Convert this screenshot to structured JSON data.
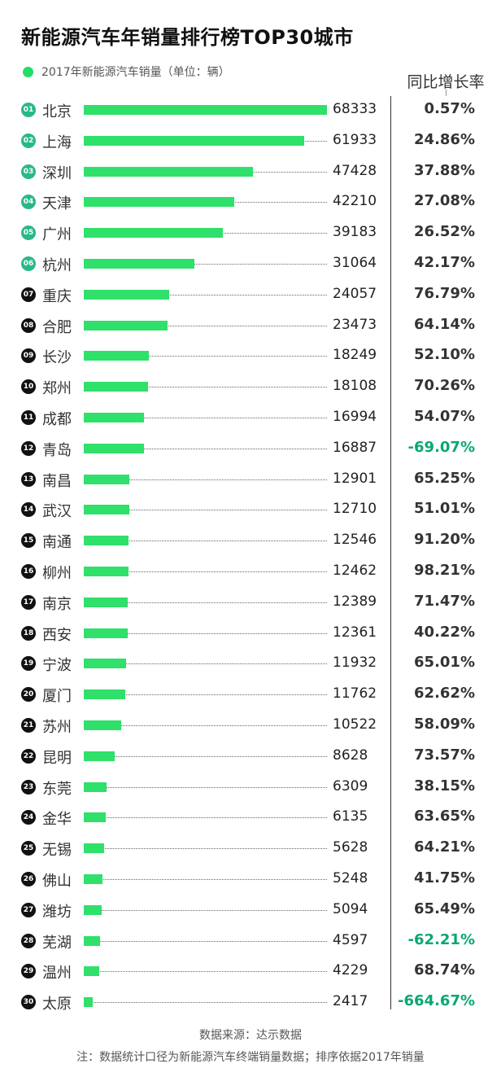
{
  "title": "新能源汽车年销量排行榜TOP30城市",
  "legend": {
    "label": "2017年新能源汽车销量（单位：辆）",
    "color": "#22dd66"
  },
  "growth_header": "同比增长率",
  "source": "数据来源：达示数据",
  "footnote": "注：数据统计口径为新能源汽车终端销量数据；排序依据2017年销量",
  "colors": {
    "bar": "#2fe06a",
    "badge_top": "#2ab88a",
    "badge_rest": "#111111",
    "negative": "#0aa870"
  },
  "chart_data": {
    "type": "bar",
    "orientation": "horizontal",
    "series_name": "2017年新能源汽车销量（单位：辆）",
    "rows": [
      {
        "rank": "01",
        "city": "北京",
        "sales": 68333,
        "growth": "0.57%"
      },
      {
        "rank": "02",
        "city": "上海",
        "sales": 61933,
        "growth": "24.86%"
      },
      {
        "rank": "03",
        "city": "深圳",
        "sales": 47428,
        "growth": "37.88%"
      },
      {
        "rank": "04",
        "city": "天津",
        "sales": 42210,
        "growth": "27.08%"
      },
      {
        "rank": "05",
        "city": "广州",
        "sales": 39183,
        "growth": "26.52%"
      },
      {
        "rank": "06",
        "city": "杭州",
        "sales": 31064,
        "growth": "42.17%"
      },
      {
        "rank": "07",
        "city": "重庆",
        "sales": 24057,
        "growth": "76.79%"
      },
      {
        "rank": "08",
        "city": "合肥",
        "sales": 23473,
        "growth": "64.14%"
      },
      {
        "rank": "09",
        "city": "长沙",
        "sales": 18249,
        "growth": "52.10%"
      },
      {
        "rank": "10",
        "city": "郑州",
        "sales": 18108,
        "growth": "70.26%"
      },
      {
        "rank": "11",
        "city": "成都",
        "sales": 16994,
        "growth": "54.07%"
      },
      {
        "rank": "12",
        "city": "青岛",
        "sales": 16887,
        "growth": "-69.07%"
      },
      {
        "rank": "13",
        "city": "南昌",
        "sales": 12901,
        "growth": "65.25%"
      },
      {
        "rank": "14",
        "city": "武汉",
        "sales": 12710,
        "growth": "51.01%"
      },
      {
        "rank": "15",
        "city": "南通",
        "sales": 12546,
        "growth": "91.20%"
      },
      {
        "rank": "16",
        "city": "柳州",
        "sales": 12462,
        "growth": "98.21%"
      },
      {
        "rank": "17",
        "city": "南京",
        "sales": 12389,
        "growth": "71.47%"
      },
      {
        "rank": "18",
        "city": "西安",
        "sales": 12361,
        "growth": "40.22%"
      },
      {
        "rank": "19",
        "city": "宁波",
        "sales": 11932,
        "growth": "65.01%"
      },
      {
        "rank": "20",
        "city": "厦门",
        "sales": 11762,
        "growth": "62.62%"
      },
      {
        "rank": "21",
        "city": "苏州",
        "sales": 10522,
        "growth": "58.09%"
      },
      {
        "rank": "22",
        "city": "昆明",
        "sales": 8628,
        "growth": "73.57%"
      },
      {
        "rank": "23",
        "city": "东莞",
        "sales": 6309,
        "growth": "38.15%"
      },
      {
        "rank": "24",
        "city": "金华",
        "sales": 6135,
        "growth": "63.65%"
      },
      {
        "rank": "25",
        "city": "无锡",
        "sales": 5628,
        "growth": "64.21%"
      },
      {
        "rank": "26",
        "city": "佛山",
        "sales": 5248,
        "growth": "41.75%"
      },
      {
        "rank": "27",
        "city": "潍坊",
        "sales": 5094,
        "growth": "65.49%"
      },
      {
        "rank": "28",
        "city": "芜湖",
        "sales": 4597,
        "growth": "-62.21%"
      },
      {
        "rank": "29",
        "city": "温州",
        "sales": 4229,
        "growth": "68.74%"
      },
      {
        "rank": "30",
        "city": "太原",
        "sales": 2417,
        "growth": "-664.67%"
      }
    ]
  }
}
